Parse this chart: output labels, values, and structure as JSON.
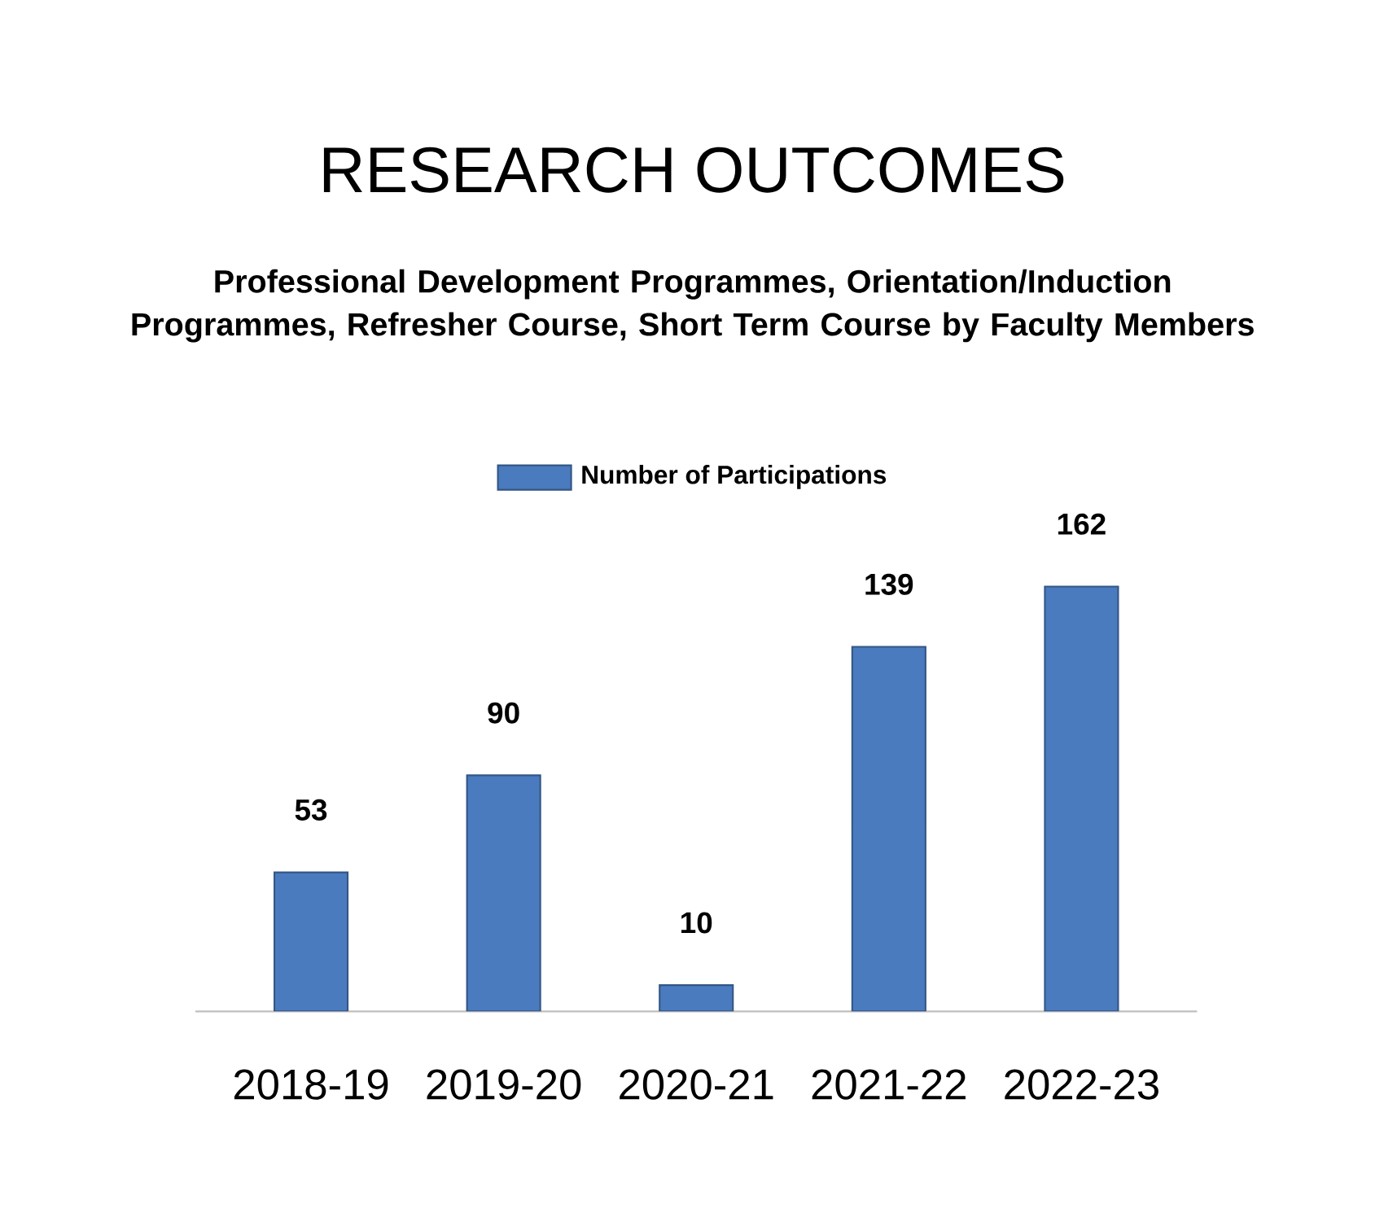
{
  "chart_data": {
    "type": "bar",
    "title": "RESEARCH OUTCOMES",
    "subtitle": "Professional Development Programmes, Orientation/Induction Programmes, Refresher Course, Short Term Course by Faculty Members",
    "categories": [
      "2018-19",
      "2019-20",
      "2020-21",
      "2021-22",
      "2022-23"
    ],
    "series": [
      {
        "name": "Number of Participations",
        "color": "#4a7bbf",
        "values": [
          53,
          90,
          10,
          139,
          162
        ]
      }
    ],
    "data_labels": true,
    "legend": "top",
    "tick_labels": "x"
  }
}
